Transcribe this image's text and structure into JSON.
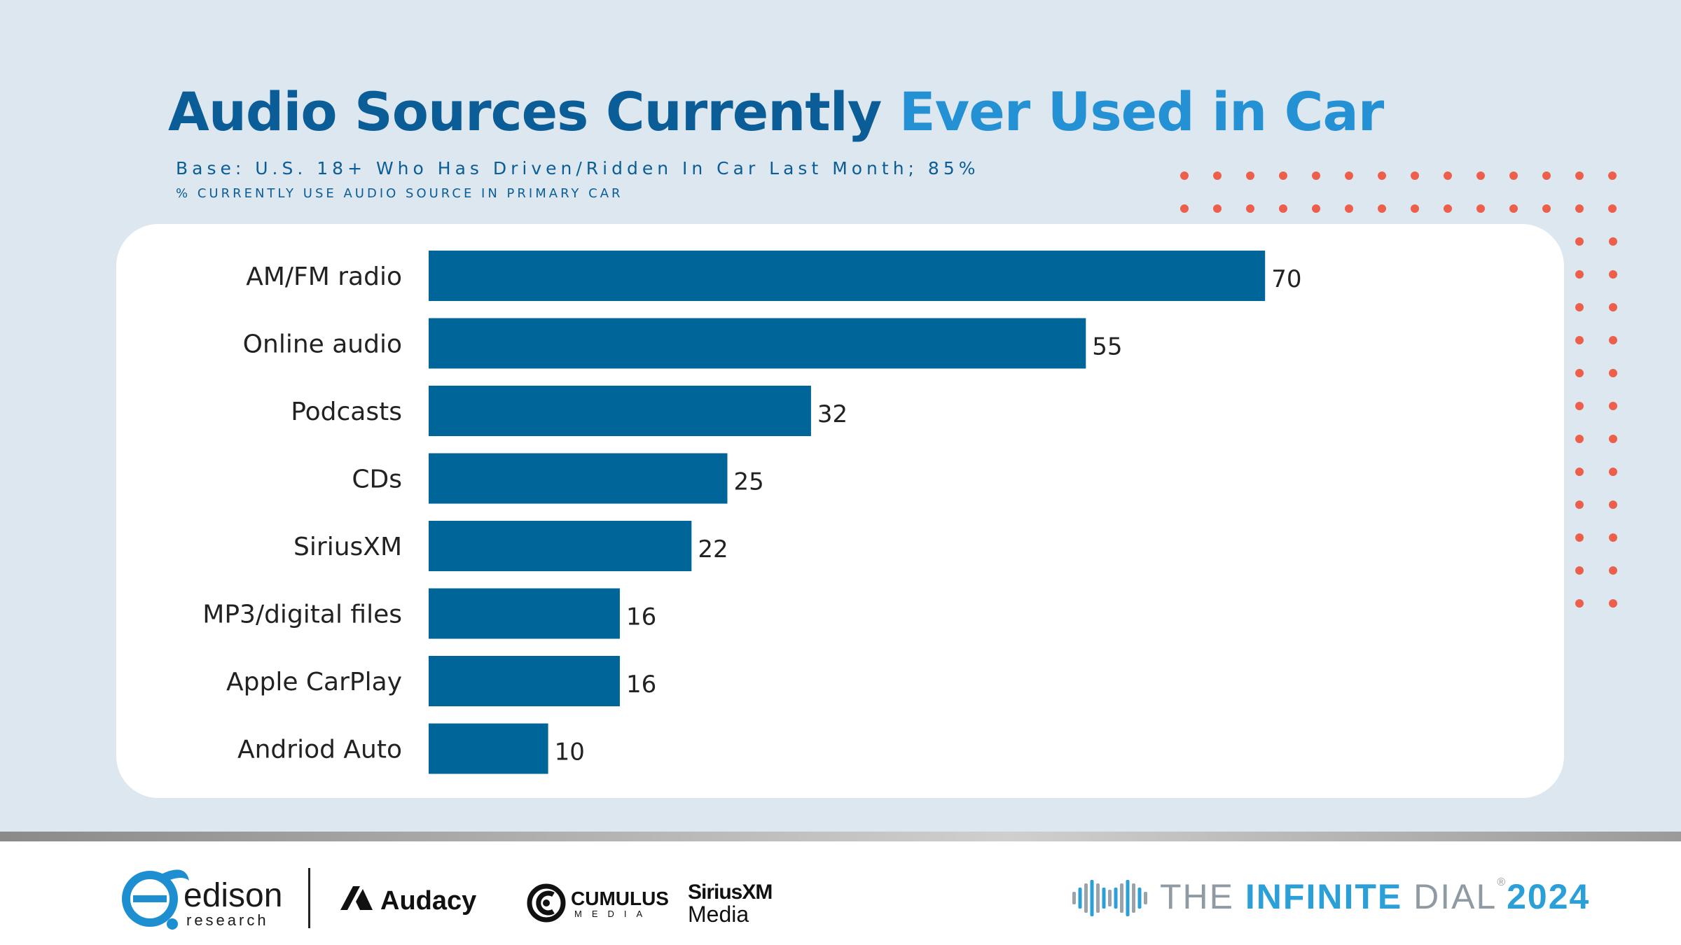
{
  "title": {
    "part1": "Audio Sources Currently",
    "part2": "Ever Used in Car"
  },
  "base_text": "Base: U.S. 18+ Who Has Driven/Ridden In Car Last Month; 85%",
  "subnote": "% CURRENTLY USE AUDIO SOURCE IN PRIMARY CAR",
  "colors": {
    "bar": "#006699",
    "title_dark": "#0a5d96",
    "title_light": "#2391d3",
    "dots": "#ee5f4b",
    "background": "#dde7ef"
  },
  "chart_data": {
    "type": "bar",
    "orientation": "horizontal",
    "categories": [
      "AM/FM radio",
      "Online audio",
      "Podcasts",
      "CDs",
      "SiriusXM",
      "MP3/digital files",
      "Apple CarPlay",
      "Andriod Auto"
    ],
    "values": [
      70,
      55,
      32,
      25,
      22,
      16,
      16,
      10
    ],
    "value_labels": [
      "70",
      "55",
      "32",
      "25",
      "22",
      "16",
      "16",
      "10"
    ],
    "xlim": [
      0,
      100
    ],
    "grid": false,
    "legend": "none"
  },
  "footer": {
    "edison": "edison",
    "edison_sub": "research",
    "audacy": "Audacy",
    "cumulus": "CUMULUS",
    "cumulus_sub": "MEDIA",
    "siriusxm": "SiriusXM",
    "siriusxm_sub": "Media",
    "dial_the": "THE",
    "dial_infinite": "INFINITE",
    "dial_dial": "DIAL",
    "dial_reg": "®",
    "dial_year": "2024"
  }
}
